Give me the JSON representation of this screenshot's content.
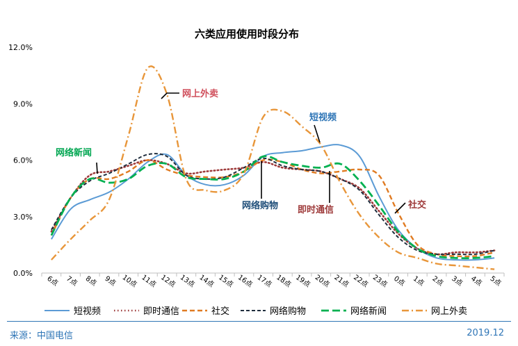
{
  "chart_data": {
    "type": "line",
    "title": "六类应用使用时段分布",
    "categories": [
      "6点",
      "7点",
      "8点",
      "9点",
      "10点",
      "11点",
      "12点",
      "13点",
      "14点",
      "15点",
      "16点",
      "17点",
      "18点",
      "19点",
      "20点",
      "21点",
      "22点",
      "23点",
      "0点",
      "1点",
      "2点",
      "3点",
      "4点",
      "5点"
    ],
    "yticks": [
      "0.0%",
      "3.0%",
      "6.0%",
      "9.0%",
      "12.0%"
    ],
    "ylim": [
      0,
      12
    ],
    "y_unit": "%",
    "grid": false,
    "legend_position": "bottom",
    "series": [
      {
        "name": "短视频",
        "color": "#5b9bd5",
        "dash": "solid",
        "values": [
          1.8,
          3.4,
          3.9,
          4.3,
          5.0,
          5.9,
          6.3,
          5.2,
          4.7,
          4.7,
          5.2,
          6.2,
          6.4,
          6.5,
          6.7,
          6.8,
          6.2,
          4.1,
          2.3,
          1.3,
          0.8,
          0.7,
          0.7,
          0.8
        ]
      },
      {
        "name": "即时通信",
        "color": "#9e3a3a",
        "dash": "dot",
        "values": [
          2.2,
          4.0,
          5.2,
          5.4,
          5.7,
          6.0,
          5.8,
          5.3,
          5.4,
          5.5,
          5.6,
          5.9,
          5.6,
          5.5,
          5.4,
          5.0,
          4.5,
          3.3,
          2.1,
          1.3,
          1.0,
          1.1,
          1.1,
          1.2
        ]
      },
      {
        "name": "社交",
        "color": "#e07b22",
        "dash": "dash",
        "values": [
          2.0,
          4.0,
          5.0,
          5.0,
          5.4,
          6.0,
          5.5,
          5.2,
          5.1,
          5.1,
          5.4,
          6.0,
          5.9,
          5.5,
          5.3,
          5.4,
          5.5,
          5.2,
          3.2,
          1.5,
          1.0,
          0.9,
          0.9,
          1.1
        ]
      },
      {
        "name": "网络购物",
        "color": "#1f2d3d",
        "dash": "shortdash",
        "values": [
          2.3,
          4.0,
          4.9,
          5.3,
          5.8,
          6.3,
          6.2,
          5.2,
          5.0,
          5.1,
          5.6,
          6.1,
          5.7,
          5.5,
          5.4,
          5.0,
          4.4,
          3.1,
          1.9,
          1.2,
          1.0,
          1.0,
          1.0,
          1.2
        ]
      },
      {
        "name": "网络新闻",
        "color": "#00b050",
        "dash": "longdash",
        "values": [
          2.0,
          4.0,
          5.0,
          4.8,
          5.0,
          5.7,
          5.8,
          5.1,
          5.0,
          5.0,
          5.4,
          6.2,
          5.9,
          5.7,
          5.6,
          5.8,
          4.9,
          3.6,
          2.2,
          1.3,
          0.9,
          0.8,
          0.8,
          0.9
        ]
      },
      {
        "name": "网上外卖",
        "color": "#e8963a",
        "dash": "dashdot",
        "values": [
          0.7,
          1.8,
          2.8,
          3.9,
          7.3,
          10.9,
          9.5,
          5.0,
          4.4,
          4.4,
          5.3,
          8.3,
          8.6,
          7.8,
          6.8,
          4.8,
          3.1,
          1.9,
          1.1,
          0.8,
          0.5,
          0.4,
          0.3,
          0.2
        ]
      }
    ],
    "annotations": [
      {
        "text": "网上外卖",
        "color": "#d04f5c"
      },
      {
        "text": "短视频",
        "color": "#2e75b6"
      },
      {
        "text": "网络新闻",
        "color": "#00a651"
      },
      {
        "text": "网络购物",
        "color": "#1f4e79"
      },
      {
        "text": "即时通信",
        "color": "#9e3a3a"
      },
      {
        "text": "社交",
        "color": "#9e3a3a"
      }
    ]
  },
  "footer": {
    "source": "来源：中国电信",
    "date": "2019.12"
  }
}
